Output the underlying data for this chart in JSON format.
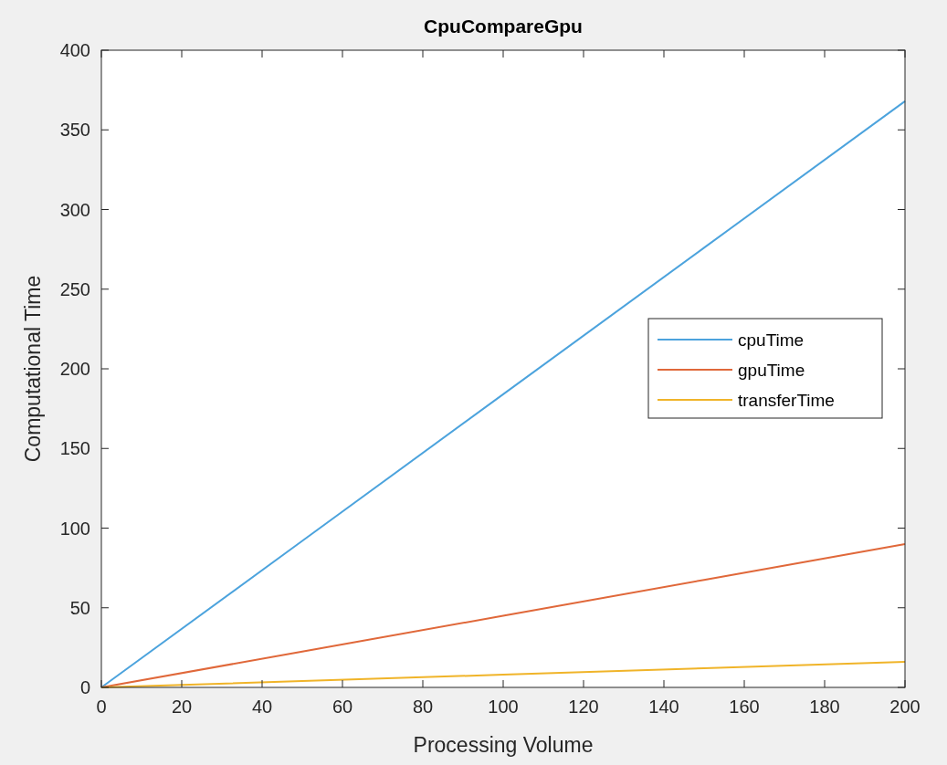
{
  "chart_data": {
    "type": "line",
    "title": "CpuCompareGpu",
    "xlabel": "Processing Volume",
    "ylabel": "Computational Time",
    "x": [
      0,
      50,
      100,
      150,
      200
    ],
    "series": [
      {
        "name": "cpuTime",
        "color": "#4ca3dd",
        "values": [
          0,
          92,
          184,
          276,
          368
        ]
      },
      {
        "name": "gpuTime",
        "color": "#e0683a",
        "values": [
          0,
          22.5,
          45,
          67.5,
          90
        ]
      },
      {
        "name": "transferTime",
        "color": "#f0b429",
        "values": [
          0,
          4,
          8,
          12,
          16
        ]
      }
    ],
    "xlim": [
      0,
      200
    ],
    "xticks": [
      0,
      20,
      40,
      60,
      80,
      100,
      120,
      140,
      160,
      180,
      200
    ],
    "ylim": [
      0,
      400
    ],
    "yticks": [
      0,
      50,
      100,
      150,
      200,
      250,
      300,
      350,
      400
    ],
    "legend": "right",
    "grid": false,
    "marker": "none",
    "line_style": "solid"
  }
}
